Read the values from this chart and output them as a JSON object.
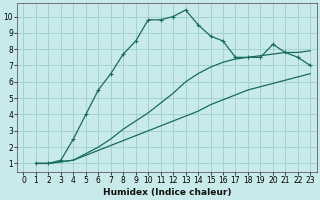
{
  "xlabel": "Humidex (Indice chaleur)",
  "xlim": [
    -0.5,
    23.5
  ],
  "ylim": [
    0.5,
    10.8
  ],
  "xticks": [
    0,
    1,
    2,
    3,
    4,
    5,
    6,
    7,
    8,
    9,
    10,
    11,
    12,
    13,
    14,
    15,
    16,
    17,
    18,
    19,
    20,
    21,
    22,
    23
  ],
  "yticks": [
    1,
    2,
    3,
    4,
    5,
    6,
    7,
    8,
    9,
    10
  ],
  "background_color": "#c8eaea",
  "grid_color": "#9ecece",
  "line_color": "#1a6b5a",
  "curve1_x": [
    1,
    2,
    3,
    4,
    5,
    6,
    7,
    8,
    9,
    10,
    11,
    12,
    13,
    14,
    15,
    16,
    17,
    18,
    19,
    20,
    21,
    22,
    23
  ],
  "curve1_y": [
    1.0,
    1.0,
    1.1,
    1.2,
    1.5,
    1.8,
    2.1,
    2.4,
    2.7,
    3.0,
    3.3,
    3.6,
    3.9,
    4.2,
    4.6,
    4.9,
    5.2,
    5.5,
    5.7,
    5.9,
    6.1,
    6.3,
    6.5
  ],
  "curve2_x": [
    1,
    2,
    3,
    4,
    5,
    6,
    7,
    8,
    9,
    10,
    11,
    12,
    13,
    14,
    15,
    16,
    17,
    18,
    19,
    20,
    21,
    22,
    23
  ],
  "curve2_y": [
    1.0,
    1.0,
    1.1,
    1.2,
    1.6,
    2.0,
    2.5,
    3.1,
    3.6,
    4.1,
    4.7,
    5.3,
    6.0,
    6.5,
    6.9,
    7.2,
    7.4,
    7.5,
    7.6,
    7.7,
    7.8,
    7.8,
    7.9
  ],
  "curve3_x": [
    1,
    2,
    3,
    4,
    5,
    6,
    7,
    8,
    9,
    10,
    11,
    12,
    13,
    14,
    15,
    16,
    17,
    18,
    19,
    20,
    21,
    22,
    23
  ],
  "curve3_y": [
    1.0,
    1.0,
    1.2,
    2.5,
    4.0,
    5.5,
    6.5,
    7.7,
    8.5,
    9.8,
    9.8,
    10.0,
    10.4,
    9.5,
    8.8,
    8.5,
    7.5,
    7.5,
    7.5,
    8.3,
    7.8,
    7.5,
    7.0
  ]
}
